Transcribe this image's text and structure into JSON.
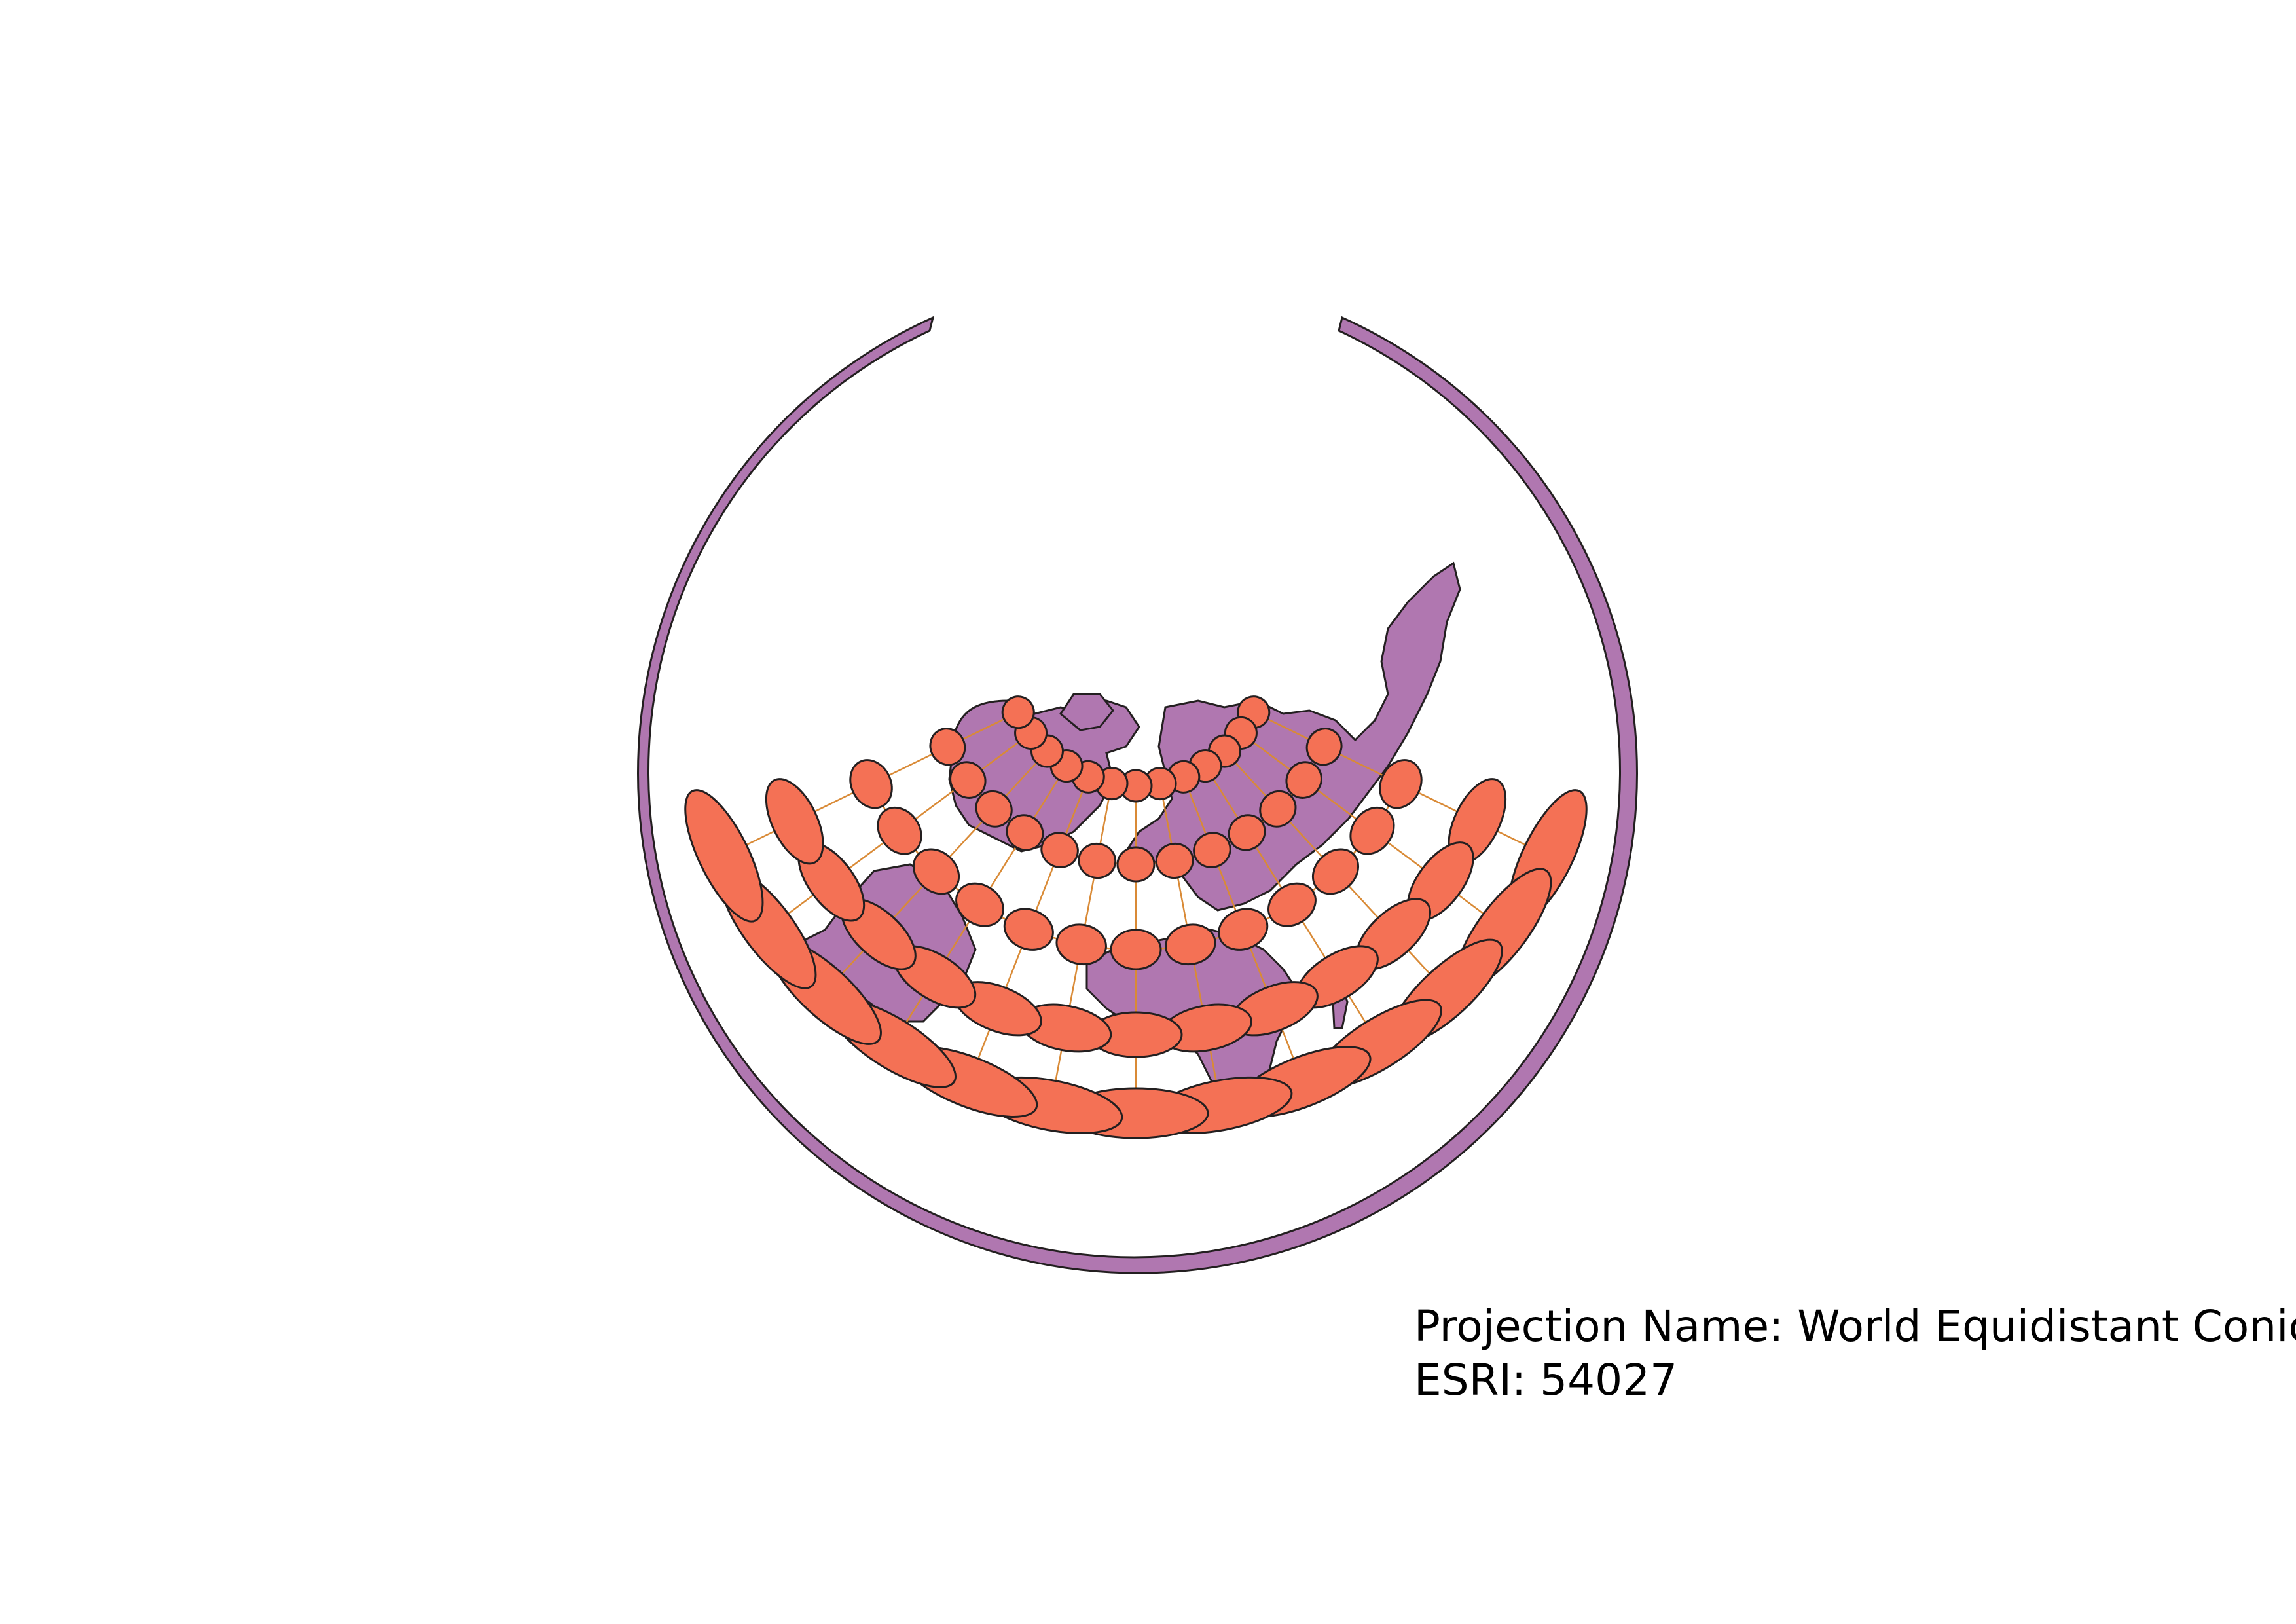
{
  "caption": {
    "projection_line": "Projection Name: World Equidistant Conic",
    "code_line": "ESRI: 54027"
  },
  "colors": {
    "land": "#b077b0",
    "ellipse": "#f47155",
    "graticule": "#d98a36",
    "outline": "#231f20",
    "background": "#ffffff"
  },
  "layers": [
    "land",
    "tissot-indicatrix",
    "graticule"
  ]
}
